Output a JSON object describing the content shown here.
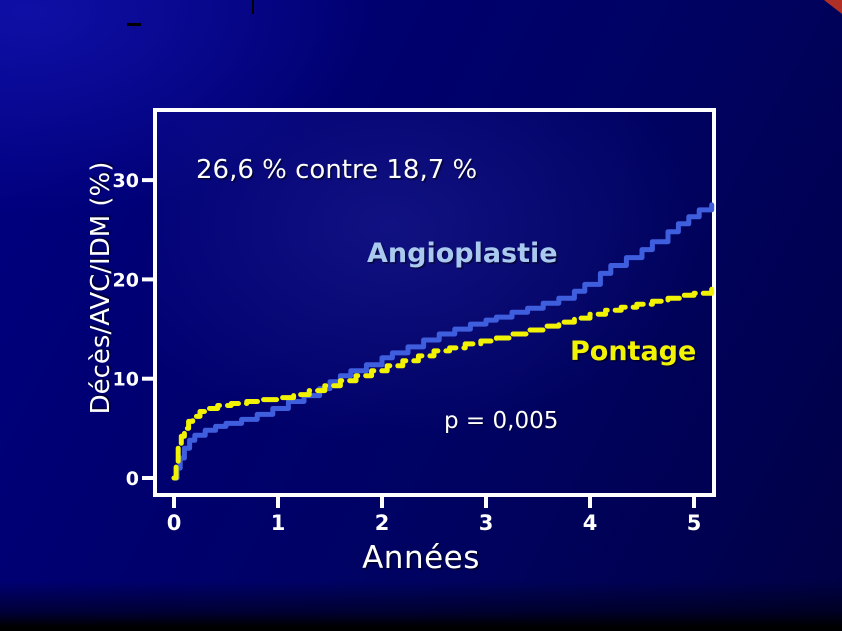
{
  "slide": {
    "annotation_title": "26,6 % contre 18,7 %",
    "p_value": "p = 0,005"
  },
  "chart_data": {
    "type": "line",
    "title": "26,6 % contre 18,7 %",
    "xlabel": "Années",
    "ylabel": "Décès/AVC/IDM (%)",
    "xlim": [
      0,
      5.2
    ],
    "ylim": [
      0,
      33
    ],
    "grid": false,
    "legend_position": "inline-labels",
    "x_ticks": [
      "0",
      "1",
      "2",
      "3",
      "4",
      "5"
    ],
    "x_tick_values": [
      0,
      1,
      2,
      3,
      4,
      5
    ],
    "y_ticks": [
      "0",
      "10",
      "20",
      "30"
    ],
    "y_tick_values": [
      0,
      10,
      20,
      30
    ],
    "annotations": [
      {
        "text": "26,6 % contre 18,7 %",
        "color": "#fdfdfd"
      },
      {
        "text": "p = 0,005",
        "color": "#ffffff"
      }
    ],
    "series": [
      {
        "name": "Angioplastie",
        "color": "#3e5ede",
        "label_color": "#a9c9ee",
        "line_style": "solid",
        "final_value_pct": 26.6,
        "x": [
          0,
          0.03,
          0.06,
          0.1,
          0.15,
          0.2,
          0.3,
          0.4,
          0.5,
          0.65,
          0.8,
          0.95,
          1.1,
          1.25,
          1.4,
          1.5,
          1.6,
          1.7,
          1.85,
          2.0,
          2.1,
          2.25,
          2.4,
          2.55,
          2.7,
          2.85,
          3.0,
          3.1,
          3.25,
          3.4,
          3.55,
          3.7,
          3.85,
          3.95,
          4.1,
          4.2,
          4.35,
          4.5,
          4.6,
          4.75,
          4.85,
          4.95,
          5.05,
          5.17
        ],
        "y": [
          0,
          1.0,
          2.0,
          3.0,
          3.8,
          4.3,
          4.8,
          5.2,
          5.5,
          5.9,
          6.4,
          7.0,
          7.7,
          8.3,
          9.0,
          9.7,
          10.3,
          10.8,
          11.4,
          12.1,
          12.6,
          13.2,
          13.9,
          14.5,
          15.0,
          15.5,
          15.9,
          16.2,
          16.7,
          17.1,
          17.6,
          18.1,
          18.8,
          19.5,
          20.6,
          21.4,
          22.2,
          23.0,
          23.8,
          24.8,
          25.6,
          26.3,
          27.0,
          27.5
        ]
      },
      {
        "name": "Pontage",
        "color": "#f2f205",
        "label_color": "#f2f205",
        "line_style": "dashed",
        "final_value_pct": 18.7,
        "x": [
          0,
          0.02,
          0.04,
          0.07,
          0.1,
          0.14,
          0.18,
          0.25,
          0.32,
          0.42,
          0.55,
          0.7,
          0.85,
          1.0,
          1.15,
          1.3,
          1.45,
          1.6,
          1.75,
          1.9,
          2.05,
          2.2,
          2.35,
          2.5,
          2.65,
          2.8,
          2.95,
          3.1,
          3.25,
          3.4,
          3.55,
          3.7,
          3.85,
          4.0,
          4.15,
          4.3,
          4.45,
          4.6,
          4.75,
          4.9,
          5.0,
          5.17
        ],
        "y": [
          0,
          1.5,
          3.0,
          4.2,
          5.0,
          5.7,
          6.2,
          6.7,
          7.0,
          7.3,
          7.5,
          7.7,
          7.9,
          8.1,
          8.4,
          8.8,
          9.3,
          9.8,
          10.3,
          10.8,
          11.3,
          11.8,
          12.3,
          12.8,
          13.1,
          13.5,
          13.8,
          14.1,
          14.5,
          14.9,
          15.3,
          15.7,
          16.1,
          16.5,
          16.9,
          17.2,
          17.5,
          17.8,
          18.1,
          18.4,
          18.6,
          19.0
        ]
      }
    ]
  },
  "decor": {
    "corner_accent_color": "#b03028"
  }
}
